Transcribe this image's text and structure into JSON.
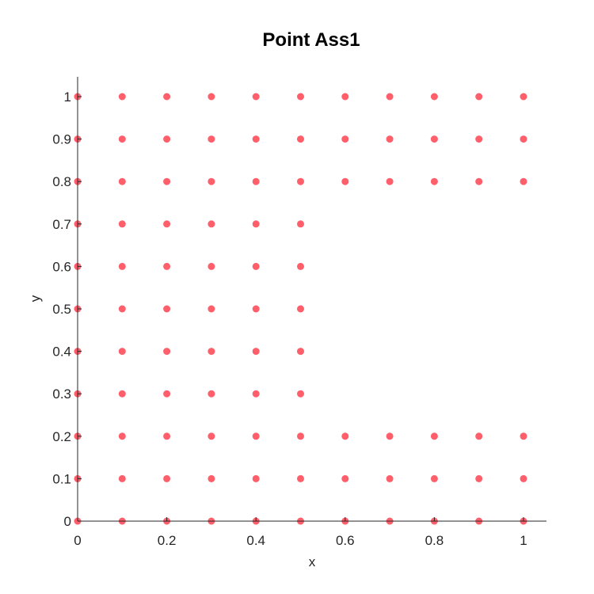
{
  "chart_data": {
    "type": "scatter",
    "title": "Point Ass1",
    "xlabel": "x",
    "ylabel": "y",
    "xlim": [
      0,
      1.05
    ],
    "ylim": [
      0,
      1.05
    ],
    "xticks": [
      0,
      0.2,
      0.4,
      0.6,
      0.8,
      1
    ],
    "xtick_labels": [
      "0",
      "0.2",
      "0.4",
      "0.6",
      "0.8",
      "1"
    ],
    "yticks": [
      0,
      0.1,
      0.2,
      0.3,
      0.4,
      0.5,
      0.6,
      0.7,
      0.8,
      0.9,
      1
    ],
    "ytick_labels": [
      "0",
      "0.1",
      "0.2",
      "0.3",
      "0.4",
      "0.5",
      "0.6",
      "0.7",
      "0.8",
      "0.9",
      "1"
    ],
    "grid": false,
    "marker_color": "#ff5f6b",
    "points": [
      [
        0,
        0
      ],
      [
        0.1,
        0
      ],
      [
        0.2,
        0
      ],
      [
        0.3,
        0
      ],
      [
        0.4,
        0
      ],
      [
        0.5,
        0
      ],
      [
        0.6,
        0
      ],
      [
        0.7,
        0
      ],
      [
        0.8,
        0
      ],
      [
        0.9,
        0
      ],
      [
        1,
        0
      ],
      [
        0,
        0.1
      ],
      [
        0.1,
        0.1
      ],
      [
        0.2,
        0.1
      ],
      [
        0.3,
        0.1
      ],
      [
        0.4,
        0.1
      ],
      [
        0.5,
        0.1
      ],
      [
        0.6,
        0.1
      ],
      [
        0.7,
        0.1
      ],
      [
        0.8,
        0.1
      ],
      [
        0.9,
        0.1
      ],
      [
        1,
        0.1
      ],
      [
        0,
        0.2
      ],
      [
        0.1,
        0.2
      ],
      [
        0.2,
        0.2
      ],
      [
        0.3,
        0.2
      ],
      [
        0.4,
        0.2
      ],
      [
        0.5,
        0.2
      ],
      [
        0.6,
        0.2
      ],
      [
        0.7,
        0.2
      ],
      [
        0.8,
        0.2
      ],
      [
        0.9,
        0.2
      ],
      [
        1,
        0.2
      ],
      [
        0,
        0.3
      ],
      [
        0.1,
        0.3
      ],
      [
        0.2,
        0.3
      ],
      [
        0.3,
        0.3
      ],
      [
        0.4,
        0.3
      ],
      [
        0.5,
        0.3
      ],
      [
        0,
        0.4
      ],
      [
        0.1,
        0.4
      ],
      [
        0.2,
        0.4
      ],
      [
        0.3,
        0.4
      ],
      [
        0.4,
        0.4
      ],
      [
        0.5,
        0.4
      ],
      [
        0,
        0.5
      ],
      [
        0.1,
        0.5
      ],
      [
        0.2,
        0.5
      ],
      [
        0.3,
        0.5
      ],
      [
        0.4,
        0.5
      ],
      [
        0.5,
        0.5
      ],
      [
        0,
        0.6
      ],
      [
        0.1,
        0.6
      ],
      [
        0.2,
        0.6
      ],
      [
        0.3,
        0.6
      ],
      [
        0.4,
        0.6
      ],
      [
        0.5,
        0.6
      ],
      [
        0,
        0.7
      ],
      [
        0.1,
        0.7
      ],
      [
        0.2,
        0.7
      ],
      [
        0.3,
        0.7
      ],
      [
        0.4,
        0.7
      ],
      [
        0.5,
        0.7
      ],
      [
        0,
        0.8
      ],
      [
        0.1,
        0.8
      ],
      [
        0.2,
        0.8
      ],
      [
        0.3,
        0.8
      ],
      [
        0.4,
        0.8
      ],
      [
        0.5,
        0.8
      ],
      [
        0.6,
        0.8
      ],
      [
        0.7,
        0.8
      ],
      [
        0.8,
        0.8
      ],
      [
        0.9,
        0.8
      ],
      [
        1,
        0.8
      ],
      [
        0,
        0.9
      ],
      [
        0.1,
        0.9
      ],
      [
        0.2,
        0.9
      ],
      [
        0.3,
        0.9
      ],
      [
        0.4,
        0.9
      ],
      [
        0.5,
        0.9
      ],
      [
        0.6,
        0.9
      ],
      [
        0.7,
        0.9
      ],
      [
        0.8,
        0.9
      ],
      [
        0.9,
        0.9
      ],
      [
        1,
        0.9
      ],
      [
        0,
        1
      ],
      [
        0.1,
        1
      ],
      [
        0.2,
        1
      ],
      [
        0.3,
        1
      ],
      [
        0.4,
        1
      ],
      [
        0.5,
        1
      ],
      [
        0.6,
        1
      ],
      [
        0.7,
        1
      ],
      [
        0.8,
        1
      ],
      [
        0.9,
        1
      ],
      [
        1,
        1
      ]
    ]
  }
}
